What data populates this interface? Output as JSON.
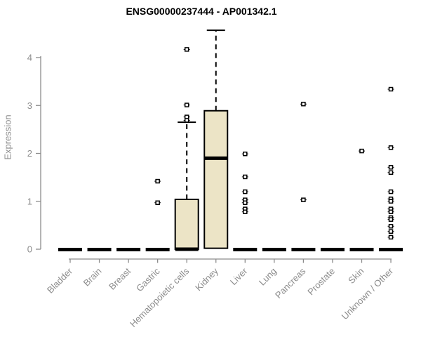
{
  "window": {
    "title": "ENSG00000237444 - AP001342.1"
  },
  "colors": {
    "background": "#ffffff",
    "box_fill": "#ece4c6",
    "box_stroke": "#000000",
    "median": "#000000",
    "whisker": "#000000",
    "outlier": "#000000",
    "axis": "#8c8c8c",
    "tick_label": "#8c8c8c",
    "title": "#000000"
  },
  "chart_data": {
    "type": "boxplot",
    "title": "ENSG00000237444 - AP001342.1",
    "xlabel": "",
    "ylabel": "Expression",
    "ylim": [
      0,
      4.6
    ],
    "yticks": [
      0,
      1,
      2,
      3,
      4
    ],
    "grid": false,
    "legend": "none",
    "categories": [
      "Bladder",
      "Brain",
      "Breast",
      "Gastric",
      "Hematopoietic cells",
      "Kidney",
      "Liver",
      "Lung",
      "Pancreas",
      "Prostate",
      "Skin",
      "Unknown / Other"
    ],
    "boxes": [
      {
        "category": "Bladder",
        "whisker_low": 0,
        "q1": 0,
        "median": 0,
        "q3": 0,
        "whisker_high": 0,
        "outliers": []
      },
      {
        "category": "Brain",
        "whisker_low": 0,
        "q1": 0,
        "median": 0,
        "q3": 0,
        "whisker_high": 0,
        "outliers": []
      },
      {
        "category": "Breast",
        "whisker_low": 0,
        "q1": 0,
        "median": 0,
        "q3": 0,
        "whisker_high": 0,
        "outliers": []
      },
      {
        "category": "Gastric",
        "whisker_low": 0,
        "q1": 0,
        "median": 0,
        "q3": 0,
        "whisker_high": 0,
        "outliers": [
          1.42,
          0.97
        ]
      },
      {
        "category": "Hematopoietic cells",
        "whisker_low": 0,
        "q1": 0,
        "median": 0,
        "q3": 1.04,
        "whisker_high": 2.65,
        "outliers": [
          4.17,
          3.01,
          2.76,
          2.69
        ]
      },
      {
        "category": "Kidney",
        "whisker_low": 0.02,
        "q1": 0.02,
        "median": 1.9,
        "q3": 2.89,
        "whisker_high": 4.57,
        "outliers": []
      },
      {
        "category": "Liver",
        "whisker_low": 0,
        "q1": 0,
        "median": 0,
        "q3": 0,
        "whisker_high": 0,
        "outliers": [
          1.99,
          1.51,
          1.2,
          1.03,
          0.97,
          0.84,
          0.78
        ]
      },
      {
        "category": "Lung",
        "whisker_low": 0,
        "q1": 0,
        "median": 0,
        "q3": 0,
        "whisker_high": 0,
        "outliers": []
      },
      {
        "category": "Pancreas",
        "whisker_low": 0,
        "q1": 0,
        "median": 0,
        "q3": 0,
        "whisker_high": 0,
        "outliers": [
          3.03,
          1.03
        ]
      },
      {
        "category": "Prostate",
        "whisker_low": 0,
        "q1": 0,
        "median": 0,
        "q3": 0,
        "whisker_high": 0,
        "outliers": []
      },
      {
        "category": "Skin",
        "whisker_low": 0,
        "q1": 0,
        "median": 0,
        "q3": 0,
        "whisker_high": 0,
        "outliers": [
          2.05
        ]
      },
      {
        "category": "Unknown / Other",
        "whisker_low": 0,
        "q1": 0,
        "median": 0,
        "q3": 0,
        "whisker_high": 0,
        "outliers": [
          3.34,
          2.12,
          1.71,
          1.6,
          1.2,
          1.05,
          1.0,
          0.84,
          0.78,
          0.66,
          0.62,
          0.48,
          0.37,
          0.25
        ]
      }
    ]
  }
}
